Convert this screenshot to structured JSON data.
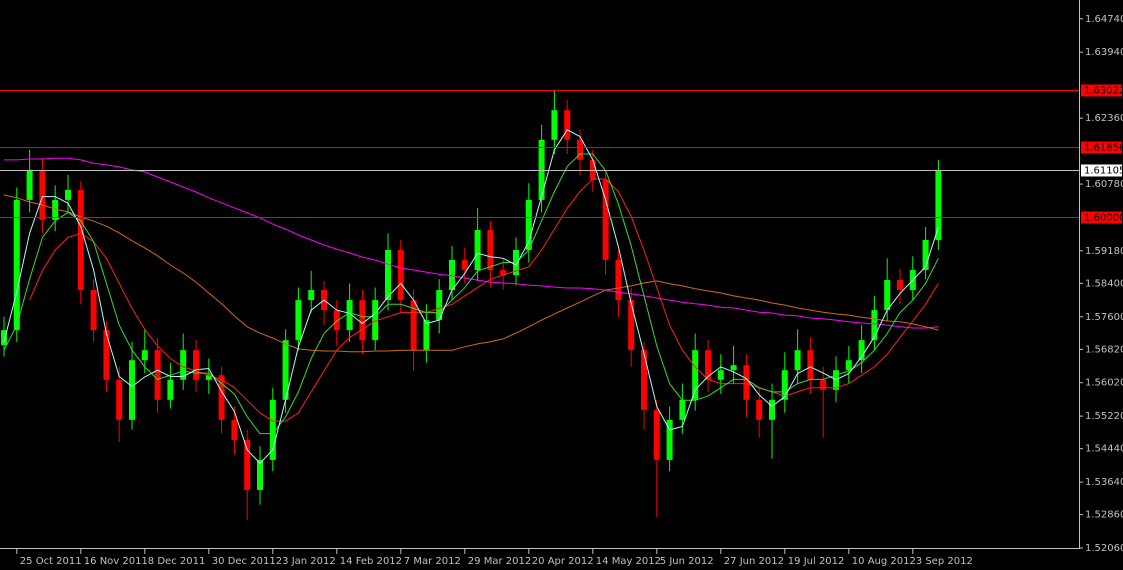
{
  "chart_data": {
    "type": "candlestick",
    "categories": [
      null,
      "25 Oct 2011",
      null,
      null,
      null,
      null,
      "16 Nov 2011",
      null,
      null,
      null,
      null,
      "8 Dec 2011",
      null,
      null,
      null,
      null,
      "30 Dec 2011",
      null,
      null,
      null,
      null,
      "23 Jan 2012",
      null,
      null,
      null,
      null,
      "14 Feb 2012",
      null,
      null,
      null,
      null,
      "7 Mar 2012",
      null,
      null,
      null,
      null,
      "29 Mar 2012",
      null,
      null,
      null,
      null,
      "20 Apr 2012",
      null,
      null,
      null,
      null,
      "14 May 2012",
      null,
      null,
      null,
      null,
      "5 Jun 2012",
      null,
      null,
      null,
      null,
      "27 Jun 2012",
      null,
      null,
      null,
      null,
      "19 Jul 2012",
      null,
      null,
      null,
      null,
      "10 Aug 2012",
      null,
      null,
      null,
      null,
      "3 Sep 2012",
      null,
      null
    ],
    "open": [
      1.5692,
      1.5728,
      1.604,
      1.6112,
      1.5992,
      1.604,
      1.6064,
      1.5824,
      1.5728,
      1.5609,
      1.5513,
      1.5656,
      1.568,
      1.5561,
      1.5609,
      1.568,
      1.5609,
      1.562,
      1.5513,
      1.5465,
      1.5345,
      1.5417,
      1.5561,
      1.5704,
      1.58,
      1.5824,
      1.5776,
      1.5728,
      1.58,
      1.5704,
      1.58,
      1.592,
      1.58,
      1.568,
      1.5752,
      1.5824,
      1.5896,
      1.5872,
      1.5968,
      1.5872,
      1.586,
      1.592,
      1.604,
      1.6184,
      1.6255,
      1.6184,
      1.6136,
      1.6088,
      1.5896,
      1.58,
      1.568,
      1.5537,
      1.5417,
      1.5513,
      1.5561,
      1.568,
      1.5609,
      1.5632,
      1.5644,
      1.5561,
      1.5513,
      1.5561,
      1.5632,
      1.568,
      1.5609,
      1.5585,
      1.5632,
      1.5656,
      1.5704,
      1.5776,
      1.5848,
      1.5824,
      1.5872,
      1.5944
    ],
    "high": [
      1.576,
      1.607,
      1.616,
      1.614,
      1.6075,
      1.61,
      1.6085,
      1.585,
      1.575,
      1.564,
      1.57,
      1.573,
      1.571,
      1.565,
      1.572,
      1.5705,
      1.566,
      1.564,
      1.5545,
      1.549,
      1.545,
      1.559,
      1.573,
      1.583,
      1.587,
      1.5845,
      1.58,
      1.584,
      1.5825,
      1.583,
      1.596,
      1.5945,
      1.5825,
      1.579,
      1.585,
      1.593,
      1.5925,
      1.602,
      1.599,
      1.59,
      1.595,
      1.608,
      1.622,
      1.6302,
      1.628,
      1.621,
      1.616,
      1.611,
      1.592,
      1.583,
      1.57,
      1.556,
      1.5545,
      1.56,
      1.572,
      1.5705,
      1.567,
      1.569,
      1.567,
      1.559,
      1.56,
      1.5675,
      1.573,
      1.571,
      1.564,
      1.5665,
      1.569,
      1.574,
      1.581,
      1.59,
      1.5875,
      1.5905,
      1.5975,
      1.6136
    ],
    "low": [
      1.5665,
      1.57,
      1.601,
      1.596,
      1.5965,
      1.601,
      1.579,
      1.57,
      1.558,
      1.546,
      1.549,
      1.5625,
      1.553,
      1.554,
      1.5585,
      1.558,
      1.5575,
      1.548,
      1.543,
      1.5273,
      1.531,
      1.539,
      1.553,
      1.568,
      1.577,
      1.574,
      1.569,
      1.57,
      1.567,
      1.568,
      1.5775,
      1.577,
      1.563,
      1.565,
      1.572,
      1.58,
      1.584,
      1.5845,
      1.583,
      1.5825,
      1.5835,
      1.589,
      1.601,
      1.615,
      1.615,
      1.61,
      1.606,
      1.586,
      1.576,
      1.564,
      1.549,
      1.528,
      1.539,
      1.548,
      1.5535,
      1.558,
      1.5575,
      1.56,
      1.552,
      1.547,
      1.542,
      1.553,
      1.56,
      1.5575,
      1.547,
      1.5555,
      1.56,
      1.5625,
      1.568,
      1.575,
      1.579,
      1.58,
      1.585,
      1.592
    ],
    "close": [
      1.5728,
      1.604,
      1.6112,
      1.5992,
      1.604,
      1.6064,
      1.5824,
      1.5728,
      1.5609,
      1.5513,
      1.5656,
      1.568,
      1.5561,
      1.5609,
      1.568,
      1.5609,
      1.562,
      1.5513,
      1.5465,
      1.5345,
      1.5417,
      1.5561,
      1.5704,
      1.58,
      1.5824,
      1.5776,
      1.5728,
      1.58,
      1.5704,
      1.58,
      1.592,
      1.58,
      1.568,
      1.5752,
      1.5824,
      1.5896,
      1.5872,
      1.5968,
      1.5872,
      1.586,
      1.592,
      1.604,
      1.6184,
      1.6255,
      1.6184,
      1.6136,
      1.6088,
      1.5896,
      1.58,
      1.568,
      1.5537,
      1.5417,
      1.5513,
      1.5561,
      1.568,
      1.5609,
      1.5632,
      1.5644,
      1.5561,
      1.5513,
      1.5561,
      1.5632,
      1.568,
      1.5609,
      1.5585,
      1.5632,
      1.5656,
      1.5704,
      1.5776,
      1.5848,
      1.5824,
      1.5872,
      1.5944,
      1.611
    ],
    "up_color": "#00ff00",
    "down_color": "#ff0000",
    "moving_averages": [
      {
        "color": "#ff00ff",
        "values": [
          1.6136,
          1.6136,
          1.6138,
          1.6138,
          1.614,
          1.614,
          1.6136,
          1.6128,
          1.6124,
          1.6119,
          1.6112,
          1.6107,
          1.6095,
          1.6083,
          1.6071,
          1.6059,
          1.6045,
          1.6033,
          1.6021,
          1.6009,
          1.5997,
          1.5982,
          1.597,
          1.5956,
          1.5944,
          1.5932,
          1.5922,
          1.5913,
          1.5903,
          1.5896,
          1.5886,
          1.5877,
          1.5872,
          1.5867,
          1.5862,
          1.5858,
          1.5853,
          1.5848,
          1.5843,
          1.5841,
          1.5839,
          1.5836,
          1.5834,
          1.5831,
          1.5829,
          1.5829,
          1.5827,
          1.5824,
          1.5819,
          1.5815,
          1.581,
          1.5805,
          1.58,
          1.5795,
          1.5791,
          1.5788,
          1.5783,
          1.5781,
          1.5776,
          1.5771,
          1.5769,
          1.5764,
          1.5762,
          1.5757,
          1.5755,
          1.5752,
          1.5748,
          1.5745,
          1.5743,
          1.574,
          1.5736,
          1.5733,
          1.5733,
          1.5736
        ]
      },
      {
        "color": "#d2691e",
        "values": [
          1.6052,
          1.6045,
          1.6035,
          1.6028,
          1.6018,
          1.6011,
          1.5999,
          1.5989,
          1.5977,
          1.5961,
          1.5942,
          1.5925,
          1.5906,
          1.5884,
          1.5865,
          1.5843,
          1.5817,
          1.5791,
          1.5762,
          1.5736,
          1.5721,
          1.5709,
          1.5695,
          1.5683,
          1.568,
          1.5678,
          1.5678,
          1.5676,
          1.5676,
          1.5678,
          1.5678,
          1.568,
          1.568,
          1.568,
          1.568,
          1.568,
          1.5688,
          1.5695,
          1.57,
          1.5707,
          1.5721,
          1.5736,
          1.5752,
          1.5767,
          1.5781,
          1.5795,
          1.581,
          1.5824,
          1.5829,
          1.5834,
          1.5841,
          1.5846,
          1.5839,
          1.5834,
          1.5827,
          1.5822,
          1.5817,
          1.581,
          1.5805,
          1.58,
          1.5793,
          1.5788,
          1.5781,
          1.5776,
          1.5771,
          1.5767,
          1.5764,
          1.5759,
          1.5755,
          1.575,
          1.5748,
          1.5743,
          1.5736,
          1.5728
        ]
      },
      {
        "color": "#ff2020",
        "values": [
          null,
          null,
          1.58,
          1.587,
          1.592,
          1.595,
          1.596,
          1.594,
          1.59,
          1.584,
          1.578,
          1.573,
          1.569,
          1.566,
          1.564,
          1.563,
          1.562,
          1.561,
          1.559,
          1.556,
          1.553,
          1.551,
          1.551,
          1.553,
          1.558,
          1.563,
          1.568,
          1.571,
          1.573,
          1.575,
          1.576,
          1.577,
          1.577,
          1.577,
          1.578,
          1.579,
          1.581,
          1.583,
          1.585,
          1.586,
          1.587,
          1.588,
          1.592,
          1.597,
          1.602,
          1.606,
          1.609,
          1.609,
          1.606,
          1.6,
          1.592,
          1.583,
          1.574,
          1.568,
          1.564,
          1.561,
          1.56,
          1.56,
          1.56,
          1.559,
          1.558,
          1.557,
          1.558,
          1.559,
          1.559,
          1.559,
          1.56,
          1.562,
          1.564,
          1.567,
          1.571,
          1.575,
          1.579,
          1.584
        ]
      },
      {
        "color": "#33dd33",
        "values": [
          1.568,
          1.574,
          1.585,
          1.595,
          1.599,
          1.601,
          1.599,
          1.594,
          1.584,
          1.574,
          1.568,
          1.564,
          1.561,
          1.562,
          1.563,
          1.5625,
          1.5625,
          1.56,
          1.5575,
          1.552,
          1.548,
          1.548,
          1.552,
          1.558,
          1.566,
          1.572,
          1.575,
          1.577,
          1.576,
          1.576,
          1.579,
          1.579,
          1.578,
          1.577,
          1.577,
          1.58,
          1.583,
          1.587,
          1.588,
          1.589,
          1.589,
          1.592,
          1.599,
          1.606,
          1.612,
          1.615,
          1.615,
          1.611,
          1.603,
          1.593,
          1.581,
          1.569,
          1.56,
          1.556,
          1.556,
          1.557,
          1.559,
          1.561,
          1.561,
          1.559,
          1.558,
          1.558,
          1.56,
          1.561,
          1.561,
          1.562,
          1.563,
          1.565,
          1.568,
          1.572,
          1.577,
          1.58,
          1.584,
          1.59
        ]
      },
      {
        "color": "#aaffff",
        "values": [
          1.57,
          1.582,
          1.596,
          1.6048,
          1.6048,
          1.6032,
          1.5976,
          1.5872,
          1.572,
          1.5617,
          1.5593,
          1.5616,
          1.5632,
          1.5617,
          1.5617,
          1.5633,
          1.5636,
          1.5581,
          1.5533,
          1.5441,
          1.5409,
          1.5441,
          1.5561,
          1.5688,
          1.5776,
          1.58,
          1.5776,
          1.5768,
          1.5744,
          1.5768,
          1.5808,
          1.584,
          1.58,
          1.5744,
          1.5752,
          1.5824,
          1.5864,
          1.5912,
          1.5904,
          1.59,
          1.5884,
          1.594,
          1.6048,
          1.616,
          1.6208,
          1.6192,
          1.6136,
          1.604,
          1.5928,
          1.5792,
          1.5672,
          1.5545,
          1.5489,
          1.5497,
          1.5585,
          1.5617,
          1.564,
          1.5628,
          1.5612,
          1.5573,
          1.5545,
          1.5569,
          1.5624,
          1.564,
          1.5625,
          1.5609,
          1.5624,
          1.5664,
          1.5712,
          1.5776,
          1.5816,
          1.5848,
          1.588,
          1.5975
        ]
      }
    ],
    "levels": [
      {
        "value": 1.63022,
        "label": "1.63022",
        "color": "#ff0000"
      },
      {
        "value": 1.61656,
        "label": "1.61656",
        "color": "#ff0000"
      },
      {
        "value": 1.6,
        "label": "1.60000",
        "color": "#ff0000"
      }
    ],
    "current_price": {
      "value": 1.61105,
      "label": "1.61105",
      "color": "#c0c0c0"
    },
    "ylim": [
      1.5206,
      1.6519
    ],
    "yticks": [
      {
        "value": 1.6474,
        "label": "1.64740"
      },
      {
        "value": 1.6394,
        "label": "1.63940"
      },
      {
        "value": 1.6236,
        "label": "1.62360"
      },
      {
        "value": 1.6078,
        "label": "1.60780"
      },
      {
        "value": 1.5918,
        "label": "1.59180"
      },
      {
        "value": 1.584,
        "label": "1.58400"
      },
      {
        "value": 1.576,
        "label": "1.57600"
      },
      {
        "value": 1.5682,
        "label": "1.56820"
      },
      {
        "value": 1.5602,
        "label": "1.56020"
      },
      {
        "value": 1.5522,
        "label": "1.55220"
      },
      {
        "value": 1.5444,
        "label": "1.54440"
      },
      {
        "value": 1.5364,
        "label": "1.53640"
      },
      {
        "value": 1.5286,
        "label": "1.52860"
      },
      {
        "value": 1.5206,
        "label": "1.52060"
      }
    ]
  }
}
